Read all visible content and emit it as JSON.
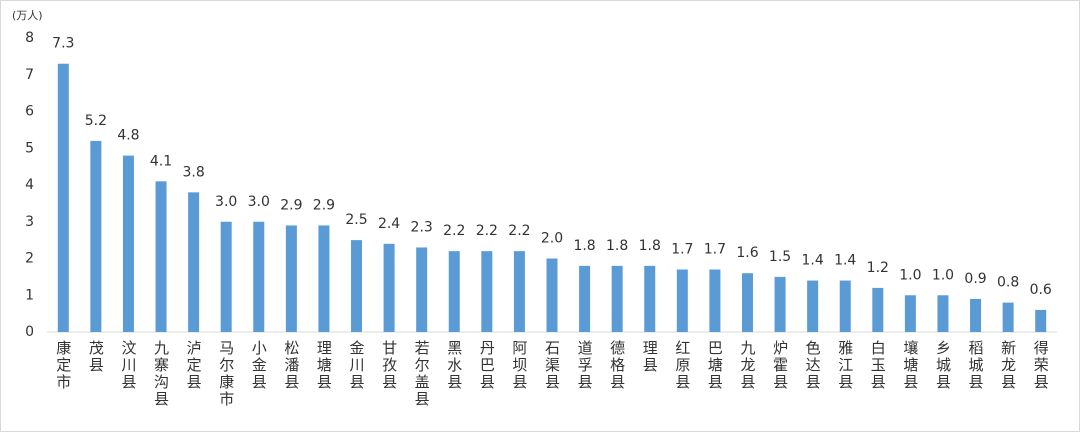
{
  "chart_data": {
    "type": "bar",
    "unit": "(万人)",
    "categories": [
      "康定市",
      "茂县",
      "汶川县",
      "九寨沟县",
      "泸定县",
      "马尔康市",
      "小金县",
      "松潘县",
      "理塘县",
      "金川县",
      "甘孜县",
      "若尔盖县",
      "黑水县",
      "丹巴县",
      "阿坝县",
      "石渠县",
      "道孚县",
      "德格县",
      "理县",
      "红原县",
      "巴塘县",
      "九龙县",
      "炉霍县",
      "色达县",
      "雅江县",
      "白玉县",
      "壤塘县",
      "乡城县",
      "稻城县",
      "新龙县",
      "得荣县"
    ],
    "values": [
      7.3,
      5.2,
      4.8,
      4.1,
      3.8,
      3.0,
      3.0,
      2.9,
      2.9,
      2.5,
      2.4,
      2.3,
      2.2,
      2.2,
      2.2,
      2.0,
      1.8,
      1.8,
      1.8,
      1.7,
      1.7,
      1.6,
      1.5,
      1.4,
      1.4,
      1.2,
      1.0,
      1.0,
      0.9,
      0.8,
      0.6
    ],
    "value_labels": [
      "7.3",
      "5.2",
      "4.8",
      "4.1",
      "3.8",
      "3.0",
      "3.0",
      "2.9",
      "2.9",
      "2.5",
      "2.4",
      "2.3",
      "2.2",
      "2.2",
      "2.2",
      "2.0",
      "1.8",
      "1.8",
      "1.8",
      "1.7",
      "1.7",
      "1.6",
      "1.5",
      "1.4",
      "1.4",
      "1.2",
      "1.0",
      "1.0",
      "0.9",
      "0.8",
      "0.6"
    ],
    "color": "#5b9bd5",
    "ylim": [
      0,
      8
    ],
    "yticks": [
      0,
      1,
      2,
      3,
      4,
      5,
      6,
      7,
      8
    ],
    "grid": false
  }
}
